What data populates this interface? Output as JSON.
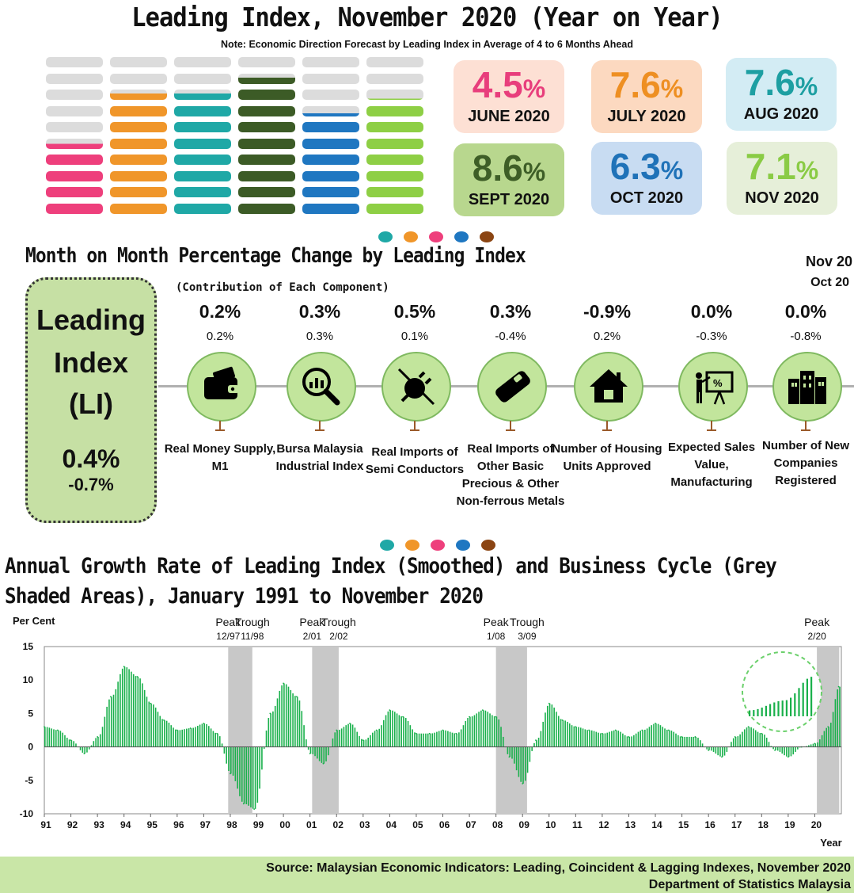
{
  "header": {
    "title": "Leading Index, November 2020 (Year on Year)",
    "note": "Note: Economic Direction Forecast by Leading Index in Average of 4 to 6 Months Ahead"
  },
  "gauge_bars": [
    {
      "month": "JUNE 2020",
      "value": 4.5,
      "color": "#ee3f7c"
    },
    {
      "month": "JULY 2020",
      "value": 7.6,
      "color": "#f0962a"
    },
    {
      "month": "AUG 2020",
      "value": 7.6,
      "color": "#1fa8a6"
    },
    {
      "month": "SEPT 2020",
      "value": 8.6,
      "color": "#3c5b26"
    },
    {
      "month": "OCT 2020",
      "value": 6.3,
      "color": "#1f77c1"
    },
    {
      "month": "NOV 2020",
      "value": 7.1,
      "color": "#8ecf45"
    }
  ],
  "cards": [
    {
      "value": "4.5",
      "pct": "%",
      "month": "JUNE 2020",
      "bg": "#fde0d4",
      "fg": "#e83e7c"
    },
    {
      "value": "7.6",
      "pct": "%",
      "month": "JULY 2020",
      "bg": "#fcd9c0",
      "fg": "#ee8f22"
    },
    {
      "value": "7.6",
      "pct": "%",
      "month": "AUG 2020",
      "bg": "#d3ecf4",
      "fg": "#1d9fa2"
    },
    {
      "value": "8.6",
      "pct": "%",
      "month": "SEPT 2020",
      "bg": "#b8d78e",
      "fg": "#3e5e27"
    },
    {
      "value": "6.3",
      "pct": "%",
      "month": "OCT 2020",
      "bg": "#c8dcf2",
      "fg": "#1f72b8"
    },
    {
      "value": "7.1",
      "pct": "%",
      "month": "NOV 2020",
      "bg": "#e6efd9",
      "fg": "#8acb45"
    }
  ],
  "dot_colors": [
    "#1fa8a6",
    "#f0962a",
    "#ee3f7c",
    "#1f77c1",
    "#8b4513"
  ],
  "mom": {
    "title": "Month on Month Percentage Change by Leading Index",
    "subtitle": "(Contribution of Each Component)",
    "legend_current": "Nov 20",
    "legend_previous": "Oct 20",
    "leading_index": {
      "line1": "Leading",
      "line2": "Index",
      "line3": "(LI)",
      "current": "0.4%",
      "previous": "-0.7%"
    },
    "components": [
      {
        "current": "0.2%",
        "previous": "0.2%",
        "name": "Real Money Supply, M1",
        "icon": "wallet-icon"
      },
      {
        "current": "0.3%",
        "previous": "0.3%",
        "name": "Bursa Malaysia Industrial Index",
        "icon": "magnifier-chart-icon"
      },
      {
        "current": "0.5%",
        "previous": "0.1%",
        "name": "Real Imports of Semi Conductors",
        "icon": "plug-icon"
      },
      {
        "current": "0.3%",
        "previous": "-0.4%",
        "name": "Real Imports of Other Basic Precious & Other Non-ferrous Metals",
        "icon": "metal-bar-icon"
      },
      {
        "current": "-0.9%",
        "previous": "0.2%",
        "name": "Number of Housing Units Approved",
        "icon": "house-icon"
      },
      {
        "current": "0.0%",
        "previous": "-0.3%",
        "name": "Expected Sales Value, Manufacturing",
        "icon": "presentation-icon"
      },
      {
        "current": "0.0%",
        "previous": "-0.8%",
        "name": "Number of New Companies Registered",
        "icon": "buildings-icon"
      }
    ]
  },
  "chart_data": {
    "type": "bar",
    "title": "Annual Growth Rate of Leading Index (Smoothed) and Business Cycle (Grey Shaded Areas), January 1991 to November 2020",
    "ylabel": "Per Cent",
    "xlabel": "Year",
    "ylim": [
      -10,
      15
    ],
    "yticks": [
      15,
      10,
      5,
      0,
      -5,
      -10
    ],
    "xtick_labels": [
      "91",
      "92",
      "93",
      "94",
      "95",
      "96",
      "97",
      "98",
      "99",
      "00",
      "01",
      "02",
      "03",
      "04",
      "05",
      "06",
      "07",
      "08",
      "09",
      "10",
      "11",
      "12",
      "13",
      "14",
      "15",
      "16",
      "17",
      "18",
      "19",
      "20"
    ],
    "series_color": "#19b04b",
    "x": [
      1991.0,
      1991.5,
      1992.0,
      1992.5,
      1993.0,
      1993.5,
      1994.0,
      1994.5,
      1995.0,
      1995.5,
      1996.0,
      1996.5,
      1997.0,
      1997.5,
      1998.0,
      1998.5,
      1998.9,
      1999.5,
      2000.0,
      2000.5,
      2001.0,
      2001.5,
      2002.0,
      2002.5,
      2003.0,
      2003.5,
      2004.0,
      2004.5,
      2005.0,
      2005.5,
      2006.0,
      2006.5,
      2007.0,
      2007.5,
      2008.0,
      2008.5,
      2009.0,
      2009.5,
      2010.0,
      2010.5,
      2011.0,
      2011.5,
      2012.0,
      2012.5,
      2013.0,
      2013.5,
      2014.0,
      2014.5,
      2015.0,
      2015.5,
      2016.0,
      2016.5,
      2017.0,
      2017.5,
      2018.0,
      2018.5,
      2019.0,
      2019.5,
      2020.0,
      2020.5,
      2020.9
    ],
    "values": [
      3.0,
      2.5,
      1.0,
      -1.0,
      1.5,
      7.5,
      12.0,
      10.5,
      6.5,
      4.0,
      2.5,
      2.8,
      3.5,
      2.0,
      -4.0,
      -8.5,
      -9.3,
      5.0,
      9.5,
      7.5,
      -1.0,
      -2.5,
      2.5,
      3.5,
      1.0,
      2.5,
      5.5,
      4.5,
      2.0,
      2.0,
      2.5,
      2.0,
      4.5,
      5.5,
      4.5,
      -1.5,
      -5.5,
      1.0,
      6.5,
      4.0,
      3.0,
      2.5,
      2.0,
      2.5,
      1.5,
      2.5,
      3.5,
      2.5,
      1.5,
      1.5,
      -0.5,
      -1.5,
      1.5,
      3.0,
      2.0,
      -0.5,
      -1.5,
      0.0,
      0.5,
      3.0,
      9.0
    ],
    "shaded_areas": [
      {
        "start": 1997.92,
        "end": 1998.83,
        "start_label": "Peak",
        "start_date": "12/97",
        "end_label": "Trough",
        "end_date": "11/98"
      },
      {
        "start": 2001.08,
        "end": 2002.08,
        "start_label": "Peak",
        "start_date": "2/01",
        "end_label": "Trough",
        "end_date": "2/02"
      },
      {
        "start": 2008.0,
        "end": 2009.17,
        "start_label": "Peak",
        "start_date": "1/08",
        "end_label": "Trough",
        "end_date": "3/09"
      },
      {
        "start": 2020.08,
        "end": 2020.92,
        "start_label": "Peak",
        "start_date": "2/20",
        "end_label": "",
        "end_date": ""
      }
    ],
    "shade_color": "#c8c8c8",
    "grid": false
  },
  "footer": {
    "source": "Source:  Malaysian Economic Indicators: Leading, Coincident & Lagging Indexes, November 2020",
    "department": "Department of Statistics Malaysia"
  }
}
